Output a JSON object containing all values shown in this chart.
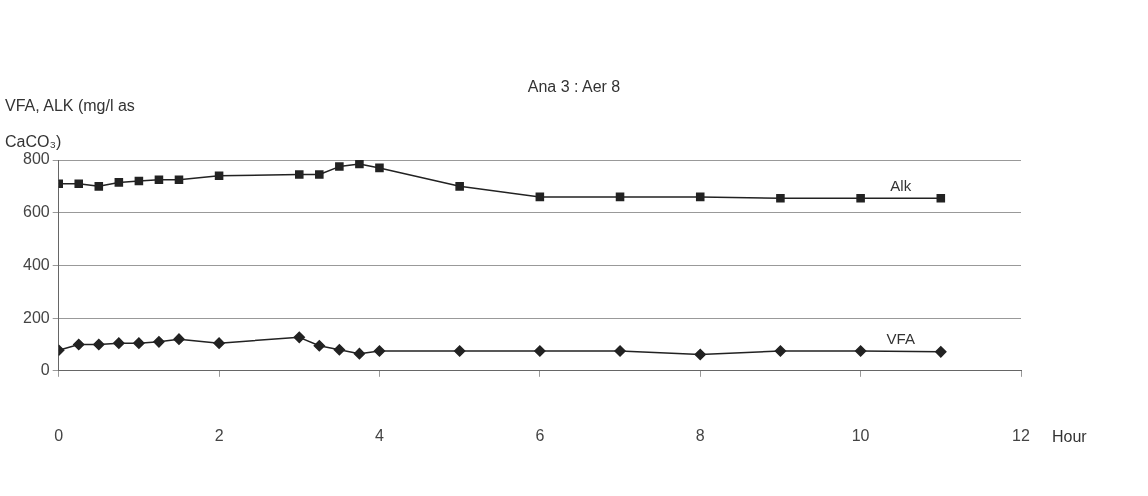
{
  "chart_data": {
    "type": "line",
    "title": "Ana 3 : Aer 8",
    "ylabel": "VFA, ALK (mg/l as CaCO₃)",
    "xlabel": "Hour",
    "x": [
      0,
      0.25,
      0.5,
      0.75,
      1,
      1.25,
      1.5,
      2,
      3,
      3.25,
      3.5,
      3.75,
      4,
      5,
      6,
      7,
      8,
      9,
      10,
      11
    ],
    "series": [
      {
        "name": "Alk",
        "color": "#222222",
        "marker": "square",
        "values": [
          710,
          710,
          700,
          715,
          720,
          725,
          725,
          740,
          745,
          745,
          775,
          785,
          770,
          700,
          660,
          660,
          660,
          655,
          655,
          655
        ]
      },
      {
        "name": "VFA",
        "color": "#222222",
        "marker": "diamond",
        "values": [
          78,
          100,
          100,
          105,
          105,
          110,
          120,
          105,
          127,
          95,
          80,
          65,
          75,
          75,
          75,
          75,
          62,
          75,
          75,
          72
        ]
      }
    ],
    "xlim": [
      0,
      12
    ],
    "xticks": [
      0,
      2,
      4,
      6,
      8,
      10,
      12
    ],
    "ylim": [
      0,
      800
    ],
    "yticks": [
      0,
      200,
      400,
      600,
      800
    ],
    "grid": "y",
    "legend": false
  }
}
